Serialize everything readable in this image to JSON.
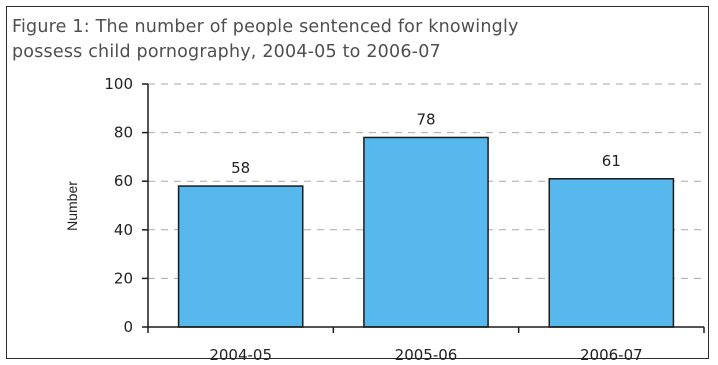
{
  "chart_data": {
    "type": "bar",
    "title_line1": "Figure 1:   The number of people sentenced for knowingly",
    "title_line2": "possess child pornography, 2004-05 to 2006-07",
    "xlabel": "",
    "ylabel": "Number",
    "categories": [
      "2004-05",
      "2005-06",
      "2006-07"
    ],
    "values": [
      58,
      78,
      61
    ],
    "data_labels": [
      "58",
      "78",
      "61"
    ],
    "ylim": [
      0,
      100
    ],
    "yticks": [
      0,
      20,
      40,
      60,
      80,
      100
    ],
    "ytick_labels": [
      "0",
      "20",
      "40",
      "60",
      "80",
      "100"
    ],
    "grid": true,
    "legend": "none",
    "colors": {
      "bar": "#56b8ec",
      "bar_edge": "#1c1c1c",
      "grid": "#a9a9a9",
      "axis": "#1c1c1c",
      "frame": "#2b2b2b"
    }
  }
}
